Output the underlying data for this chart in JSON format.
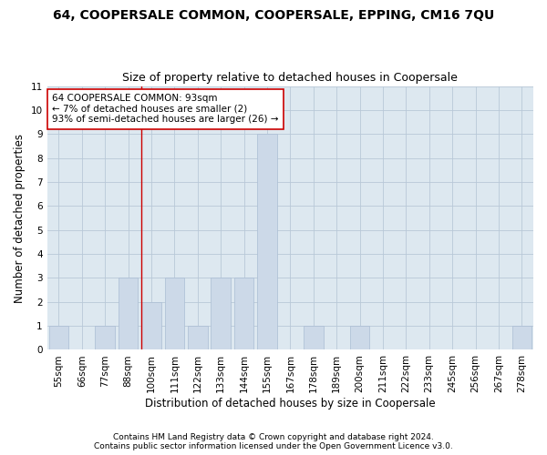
{
  "title": "64, COOPERSALE COMMON, COOPERSALE, EPPING, CM16 7QU",
  "subtitle": "Size of property relative to detached houses in Coopersale",
  "xlabel": "Distribution of detached houses by size in Coopersale",
  "ylabel": "Number of detached properties",
  "categories": [
    "55sqm",
    "66sqm",
    "77sqm",
    "88sqm",
    "100sqm",
    "111sqm",
    "122sqm",
    "133sqm",
    "144sqm",
    "155sqm",
    "167sqm",
    "178sqm",
    "189sqm",
    "200sqm",
    "211sqm",
    "222sqm",
    "233sqm",
    "245sqm",
    "256sqm",
    "267sqm",
    "278sqm"
  ],
  "values": [
    1,
    0,
    1,
    3,
    2,
    3,
    1,
    3,
    3,
    9,
    0,
    1,
    0,
    1,
    0,
    0,
    0,
    0,
    0,
    0,
    1
  ],
  "bar_color": "#ccd9e8",
  "bar_edgecolor": "#aabdd4",
  "grid_color": "#b8c8d8",
  "background_color": "#ffffff",
  "ax_background": "#dde8f0",
  "annotation_line1": "64 COOPERSALE COMMON: 93sqm",
  "annotation_line2": "← 7% of detached houses are smaller (2)",
  "annotation_line3": "93% of semi-detached houses are larger (26) →",
  "annotation_box_edgecolor": "#cc0000",
  "vline_color": "#cc0000",
  "vline_x": 3.55,
  "ylim": [
    0,
    11
  ],
  "yticks": [
    0,
    1,
    2,
    3,
    4,
    5,
    6,
    7,
    8,
    9,
    10,
    11
  ],
  "footer1": "Contains HM Land Registry data © Crown copyright and database right 2024.",
  "footer2": "Contains public sector information licensed under the Open Government Licence v3.0.",
  "title_fontsize": 10,
  "subtitle_fontsize": 9,
  "axis_label_fontsize": 8.5,
  "tick_fontsize": 7.5,
  "annotation_fontsize": 7.5,
  "footer_fontsize": 6.5
}
